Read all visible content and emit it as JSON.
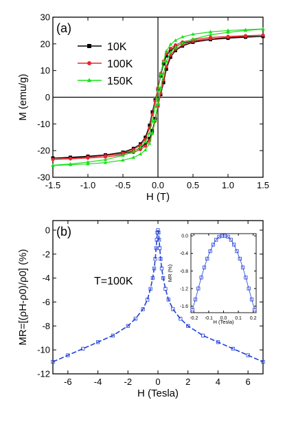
{
  "chart_data": [
    {
      "type": "line",
      "panel_label": "(a)",
      "xlabel": "H (T)",
      "ylabel": "M (emu/g)",
      "xlim": [
        -1.5,
        1.5
      ],
      "ylim": [
        -30,
        30
      ],
      "xticks": [
        -1.5,
        -1.0,
        -0.5,
        0.0,
        0.5,
        1.0,
        1.5
      ],
      "xtick_labels": [
        "-1.5",
        "-1.0",
        "-0.5",
        "0.0",
        "0.5",
        "1.0",
        "1.5"
      ],
      "yticks": [
        -30,
        -20,
        -10,
        0,
        10,
        20,
        30
      ],
      "ytick_labels": [
        "-30",
        "-20",
        "-10",
        "0",
        "10",
        "20",
        "30"
      ],
      "legend_position": "left",
      "zero_lines": true,
      "x": [
        -1.5,
        -1.25,
        -1.0,
        -0.75,
        -0.5,
        -0.35,
        -0.25,
        -0.18,
        -0.12,
        -0.08,
        -0.04,
        0.0,
        0.04,
        0.08,
        0.12,
        0.18,
        0.25,
        0.35,
        0.5,
        0.75,
        1.0,
        1.25,
        1.5
      ],
      "series": [
        {
          "name": "10K",
          "color": "#000000",
          "marker": "square",
          "ascending": [
            -22.8,
            -22.5,
            -22.1,
            -21.6,
            -20.6,
            -19.2,
            -17.5,
            -15.0,
            -10.5,
            -5.5,
            -1.0,
            3.0,
            8.0,
            12.5,
            15.5,
            17.6,
            19.0,
            20.2,
            21.1,
            21.9,
            22.3,
            22.6,
            22.8
          ],
          "descending": [
            -22.8,
            -22.6,
            -22.3,
            -21.9,
            -21.1,
            -20.2,
            -19.0,
            -17.6,
            -15.5,
            -12.5,
            -8.0,
            -3.0,
            1.0,
            5.5,
            10.5,
            15.0,
            17.5,
            19.2,
            20.6,
            21.6,
            22.1,
            22.5,
            22.8
          ]
        },
        {
          "name": "100K",
          "color": "#e8262b",
          "marker": "circle",
          "ascending": [
            -23.3,
            -22.9,
            -22.5,
            -21.9,
            -20.9,
            -19.6,
            -18.0,
            -15.8,
            -11.5,
            -6.5,
            -1.5,
            3.5,
            9.0,
            13.5,
            16.3,
            18.3,
            19.6,
            20.7,
            21.6,
            22.4,
            22.8,
            23.1,
            23.3
          ],
          "descending": [
            -23.3,
            -23.1,
            -22.8,
            -22.4,
            -21.6,
            -20.7,
            -19.6,
            -18.3,
            -16.3,
            -13.5,
            -9.0,
            -3.5,
            1.5,
            6.5,
            11.5,
            15.8,
            18.0,
            19.6,
            20.9,
            21.9,
            22.5,
            22.9,
            23.3
          ]
        },
        {
          "name": "150K",
          "color": "#18e018",
          "marker": "triangle",
          "ascending": [
            -25.5,
            -25.0,
            -24.3,
            -23.4,
            -21.8,
            -20.3,
            -18.7,
            -16.8,
            -13.5,
            -9.0,
            -3.5,
            2.5,
            8.5,
            13.5,
            17.3,
            19.8,
            21.3,
            22.6,
            23.6,
            24.5,
            25.0,
            25.3,
            25.6
          ],
          "descending": [
            -25.6,
            -25.3,
            -25.0,
            -24.5,
            -23.6,
            -22.6,
            -21.3,
            -19.8,
            -17.3,
            -13.5,
            -8.5,
            -2.5,
            3.5,
            9.0,
            13.5,
            16.8,
            18.7,
            20.3,
            21.8,
            23.4,
            24.3,
            25.0,
            25.5
          ]
        }
      ]
    },
    {
      "type": "line",
      "panel_label": "(b)",
      "annotation": "T=100K",
      "xlabel": "H (Tesla)",
      "ylabel": "MR=[(ρH-ρ0)/ρ0] (%)",
      "xlim": [
        -7,
        7
      ],
      "ylim": [
        -12,
        0.8
      ],
      "xticks": [
        -6,
        -4,
        -2,
        0,
        2,
        4,
        6
      ],
      "xtick_labels": [
        "-6",
        "-4",
        "-2",
        "0",
        "2",
        "4",
        "6"
      ],
      "yticks": [
        -12,
        -10,
        -8,
        -6,
        -4,
        -2,
        0
      ],
      "ytick_labels": [
        "-12",
        "-10",
        "-8",
        "-6",
        "-4",
        "-2",
        "0"
      ],
      "series": [
        {
          "name": "MR",
          "color": "#1f3fd6",
          "marker": "square-open",
          "x": [
            -7,
            -6,
            -5,
            -4,
            -3,
            -2,
            -1.5,
            -1.0,
            -0.7,
            -0.5,
            -0.35,
            -0.25,
            -0.18,
            -0.12,
            -0.08,
            -0.04,
            0,
            0.04,
            0.08,
            0.12,
            0.18,
            0.25,
            0.35,
            0.5,
            0.7,
            1.0,
            1.5,
            2,
            3,
            4,
            5,
            6,
            7
          ],
          "y": [
            -11.0,
            -10.45,
            -9.9,
            -9.35,
            -8.8,
            -8.0,
            -7.4,
            -6.6,
            -5.8,
            -4.9,
            -4.0,
            -3.2,
            -2.4,
            -1.5,
            -0.8,
            -0.2,
            0.0,
            -0.2,
            -0.8,
            -1.5,
            -2.4,
            -3.2,
            -4.0,
            -4.9,
            -5.8,
            -6.6,
            -7.4,
            -8.0,
            -8.8,
            -9.35,
            -9.9,
            -10.45,
            -11.0
          ]
        }
      ]
    },
    {
      "type": "line",
      "panel_label": "",
      "xlabel": "H (Tesla)",
      "ylabel": "MR (%)",
      "xlim": [
        -0.22,
        0.22
      ],
      "ylim": [
        -1.75,
        0.05
      ],
      "xticks": [
        -0.2,
        -0.1,
        0.0,
        0.1,
        0.2
      ],
      "xtick_labels": [
        "-0.2",
        "-0.1",
        "0.0",
        "0.1",
        "0.2"
      ],
      "yticks": [
        0.0,
        -0.4,
        -0.8,
        -1.2,
        -1.6
      ],
      "ytick_labels": [
        "0.0",
        "-0.4",
        "-0.8",
        "-1.2",
        "-1.6"
      ],
      "series": [
        {
          "name": "MR inset",
          "color": "#1f3fd6",
          "marker": "square-open",
          "x": [
            -0.21,
            -0.19,
            -0.17,
            -0.15,
            -0.13,
            -0.11,
            -0.09,
            -0.07,
            -0.05,
            -0.03,
            -0.01,
            0.01,
            0.03,
            0.05,
            0.07,
            0.09,
            0.11,
            0.13,
            0.15,
            0.17,
            0.19,
            0.21
          ],
          "y": [
            -1.68,
            -1.45,
            -1.2,
            -0.95,
            -0.72,
            -0.52,
            -0.35,
            -0.2,
            -0.09,
            -0.02,
            0.0,
            0.0,
            -0.02,
            -0.09,
            -0.2,
            -0.35,
            -0.52,
            -0.72,
            -0.95,
            -1.2,
            -1.45,
            -1.68
          ]
        }
      ]
    }
  ]
}
